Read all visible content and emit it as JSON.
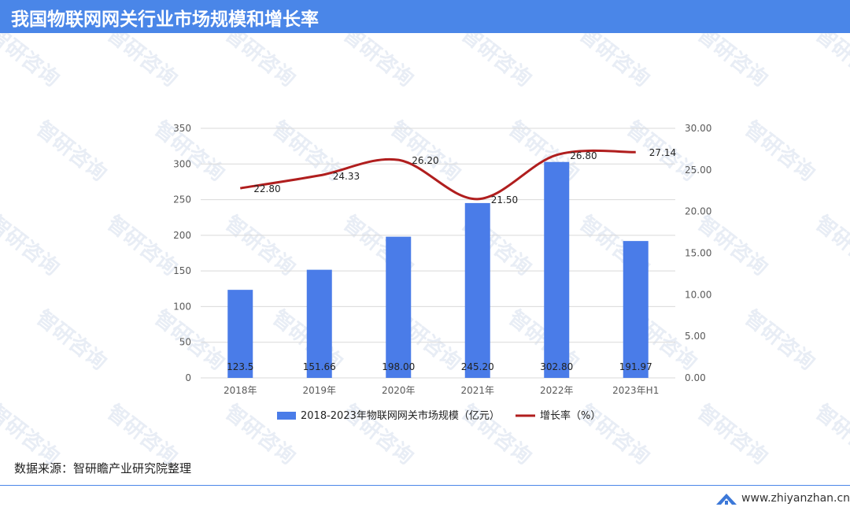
{
  "header": {
    "title": "我国物联网网关行业市场规模和增长率"
  },
  "watermark_text": "智研咨询",
  "chart_data": {
    "type": "bar",
    "categories": [
      "2018年",
      "2019年",
      "2020年",
      "2021年",
      "2022年",
      "2023年H1"
    ],
    "series": [
      {
        "name": "2018-2023年物联网网关市场规模（亿元）",
        "type": "bar",
        "axis": "left",
        "values": [
          123.5,
          151.66,
          198.0,
          245.2,
          302.8,
          191.97
        ],
        "labels": [
          "123.5",
          "151.66",
          "198.00",
          "245.20",
          "302.80",
          "191.97"
        ]
      },
      {
        "name": "增长率（%）",
        "type": "line",
        "axis": "right",
        "values": [
          22.8,
          24.33,
          26.2,
          21.5,
          26.8,
          27.14
        ],
        "labels": [
          "22.80",
          "24.33",
          "26.20",
          "21.50",
          "26.80",
          "27.14"
        ]
      }
    ],
    "y_left": {
      "min": 0,
      "max": 350,
      "ticks": [
        "0",
        "50",
        "100",
        "150",
        "200",
        "250",
        "300",
        "350"
      ]
    },
    "y_right": {
      "min": 0,
      "max": 30,
      "ticks": [
        "0.00",
        "5.00",
        "10.00",
        "15.00",
        "20.00",
        "25.00",
        "30.00"
      ]
    },
    "grid": true,
    "legend": "bottom",
    "colors": {
      "bar": "#4a7ce8",
      "line": "#b01e1e"
    }
  },
  "footer": {
    "source": "数据来源：智研瞻产业研究院整理",
    "site": "www.zhiyanzhan.cn"
  }
}
